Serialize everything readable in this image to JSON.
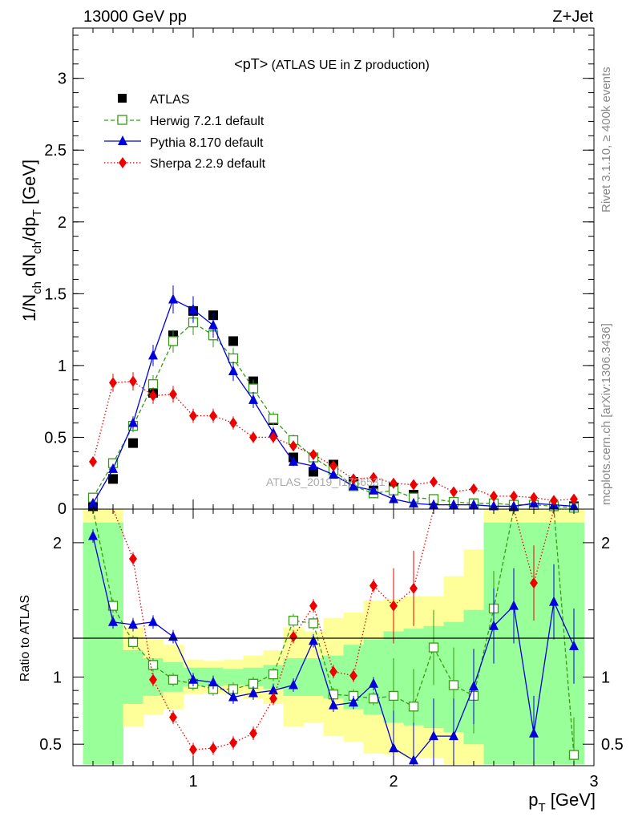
{
  "header": {
    "left": "13000 GeV pp",
    "right": "Z+Jet",
    "title_main": "<pT>",
    "title_sub": " (ATLAS UE in Z production)"
  },
  "side": {
    "rivet": "Rivet 3.1.10, ≥ 400k events",
    "mcplots": "mcplots.cern.ch [arXiv:1306.3436]"
  },
  "watermark": "ATLAS_2019_I1736531",
  "chart_data": {
    "type": "scatter",
    "title": "<pT> (ATLAS UE in Z production)",
    "xlabel": "p_T [GeV]",
    "ylabel": "1/N_ch dN_ch/dp_T [GeV]",
    "ratio_ylabel": "Ratio to ATLAS",
    "xlim": [
      0.4,
      3.0
    ],
    "ylim": [
      0,
      3.35
    ],
    "ratio_ylim": [
      0.34,
      2.25
    ],
    "x_ticks": [
      1,
      2,
      3
    ],
    "x_tick_labels": [
      "1",
      "2",
      "3"
    ],
    "y_ticks": [
      0.5,
      1,
      1.5,
      2,
      2.5,
      3
    ],
    "y_tick_labels": [
      "0.5",
      "1",
      "1.5",
      "2",
      "2.5",
      "3"
    ],
    "zero_label": "0",
    "ratio_ticks": [
      0.5,
      1,
      2
    ],
    "ratio_tick_labels": [
      "0.5",
      "1",
      "2"
    ],
    "x": [
      0.5,
      0.6,
      0.7,
      0.8,
      0.9,
      1.0,
      1.1,
      1.2,
      1.3,
      1.4,
      1.5,
      1.6,
      1.7,
      1.8,
      1.9,
      2.0,
      2.1,
      2.2,
      2.3,
      2.4,
      2.5,
      2.6,
      2.7,
      2.8,
      2.9
    ],
    "series": [
      {
        "name": "ATLAS",
        "color": "#000000",
        "values": [
          0.02,
          0.21,
          0.46,
          0.81,
          1.21,
          1.38,
          1.35,
          1.17,
          0.89,
          0.62,
          0.36,
          0.26,
          0.31,
          0.19,
          0.13,
          0.15,
          0.1,
          0.06,
          0.05,
          0.04,
          0.03,
          0.02,
          0.03,
          0.02,
          0.02
        ]
      },
      {
        "name": "Herwig 7.2.1 default",
        "color": "#3a9a17",
        "values": [
          0.08,
          0.32,
          0.58,
          0.87,
          1.17,
          1.3,
          1.21,
          1.05,
          0.84,
          0.63,
          0.48,
          0.36,
          0.27,
          0.16,
          0.11,
          0.13,
          0.08,
          0.07,
          0.05,
          0.04,
          0.04,
          0.03,
          0.03,
          0.02,
          0.01
        ],
        "ratio": [
          3.0,
          1.53,
          1.26,
          1.09,
          0.98,
          0.95,
          0.91,
          0.91,
          0.95,
          1.02,
          1.42,
          1.4,
          0.87,
          0.86,
          0.84,
          0.86,
          0.78,
          1.22,
          0.94,
          0.86,
          1.51,
          2.6,
          3.0,
          3.0,
          0.42
        ]
      },
      {
        "name": "Pythia 8.170 default",
        "color": "#0000dd",
        "values": [
          0.04,
          0.28,
          0.6,
          1.07,
          1.46,
          1.39,
          1.28,
          0.96,
          0.76,
          0.53,
          0.33,
          0.3,
          0.24,
          0.16,
          0.13,
          0.07,
          0.04,
          0.03,
          0.03,
          0.03,
          0.02,
          0.02,
          0.04,
          0.03,
          0.02
        ],
        "ratio": [
          2.05,
          1.41,
          1.39,
          1.41,
          1.3,
          0.98,
          0.96,
          0.85,
          0.88,
          0.9,
          0.94,
          1.27,
          0.79,
          0.81,
          0.95,
          0.47,
          0.38,
          0.56,
          0.56,
          0.93,
          1.38,
          1.53,
          0.58,
          1.56,
          1.23
        ]
      },
      {
        "name": "Sherpa 2.2.9 default",
        "color": "#ee0000",
        "values": [
          0.33,
          0.88,
          0.89,
          0.79,
          0.8,
          0.65,
          0.65,
          0.6,
          0.5,
          0.5,
          0.44,
          0.38,
          0.3,
          0.21,
          0.22,
          0.18,
          0.17,
          0.19,
          0.12,
          0.14,
          0.09,
          0.09,
          0.08,
          0.06,
          0.07
        ],
        "ratio": [
          3.0,
          3.0,
          1.88,
          0.98,
          0.7,
          0.46,
          0.47,
          0.51,
          0.58,
          0.84,
          1.3,
          1.53,
          1.04,
          1.01,
          1.68,
          1.53,
          1.66,
          3.0,
          2.3,
          3.0,
          3.0,
          3.0,
          1.7,
          3.0,
          3.0
        ]
      }
    ],
    "ratio_band_inner": [
      [
        0.35,
        2.15
      ],
      [
        0.35,
        2.15
      ],
      [
        0.8,
        1.2
      ],
      [
        0.86,
        1.14
      ],
      [
        0.89,
        1.11
      ],
      [
        0.93,
        1.07
      ],
      [
        0.93,
        1.07
      ],
      [
        0.94,
        1.06
      ],
      [
        0.93,
        1.07
      ],
      [
        0.91,
        1.09
      ],
      [
        0.86,
        1.14
      ],
      [
        0.86,
        1.14
      ],
      [
        0.84,
        1.16
      ],
      [
        0.76,
        1.24
      ],
      [
        0.72,
        1.28
      ],
      [
        0.66,
        1.34
      ],
      [
        0.64,
        1.36
      ],
      [
        0.62,
        1.38
      ],
      [
        0.59,
        1.41
      ],
      [
        0.5,
        1.5
      ],
      [
        0.35,
        2.15
      ],
      [
        0.35,
        2.15
      ],
      [
        0.35,
        2.15
      ],
      [
        0.35,
        2.15
      ],
      [
        0.35,
        2.15
      ]
    ],
    "ratio_band_outer": [
      [
        0.35,
        2.3
      ],
      [
        0.35,
        2.3
      ],
      [
        0.63,
        1.37
      ],
      [
        0.72,
        1.28
      ],
      [
        0.76,
        1.24
      ],
      [
        0.87,
        1.13
      ],
      [
        0.88,
        1.12
      ],
      [
        0.87,
        1.13
      ],
      [
        0.84,
        1.16
      ],
      [
        0.8,
        1.2
      ],
      [
        0.63,
        1.37
      ],
      [
        0.66,
        1.34
      ],
      [
        0.56,
        1.44
      ],
      [
        0.52,
        1.48
      ],
      [
        0.43,
        1.57
      ],
      [
        0.42,
        1.58
      ],
      [
        0.4,
        1.6
      ],
      [
        0.4,
        1.6
      ],
      [
        0.35,
        1.75
      ],
      [
        0.35,
        1.95
      ],
      [
        0.35,
        2.3
      ],
      [
        0.35,
        2.3
      ],
      [
        0.35,
        2.3
      ],
      [
        0.35,
        2.3
      ],
      [
        0.35,
        2.3
      ]
    ]
  }
}
